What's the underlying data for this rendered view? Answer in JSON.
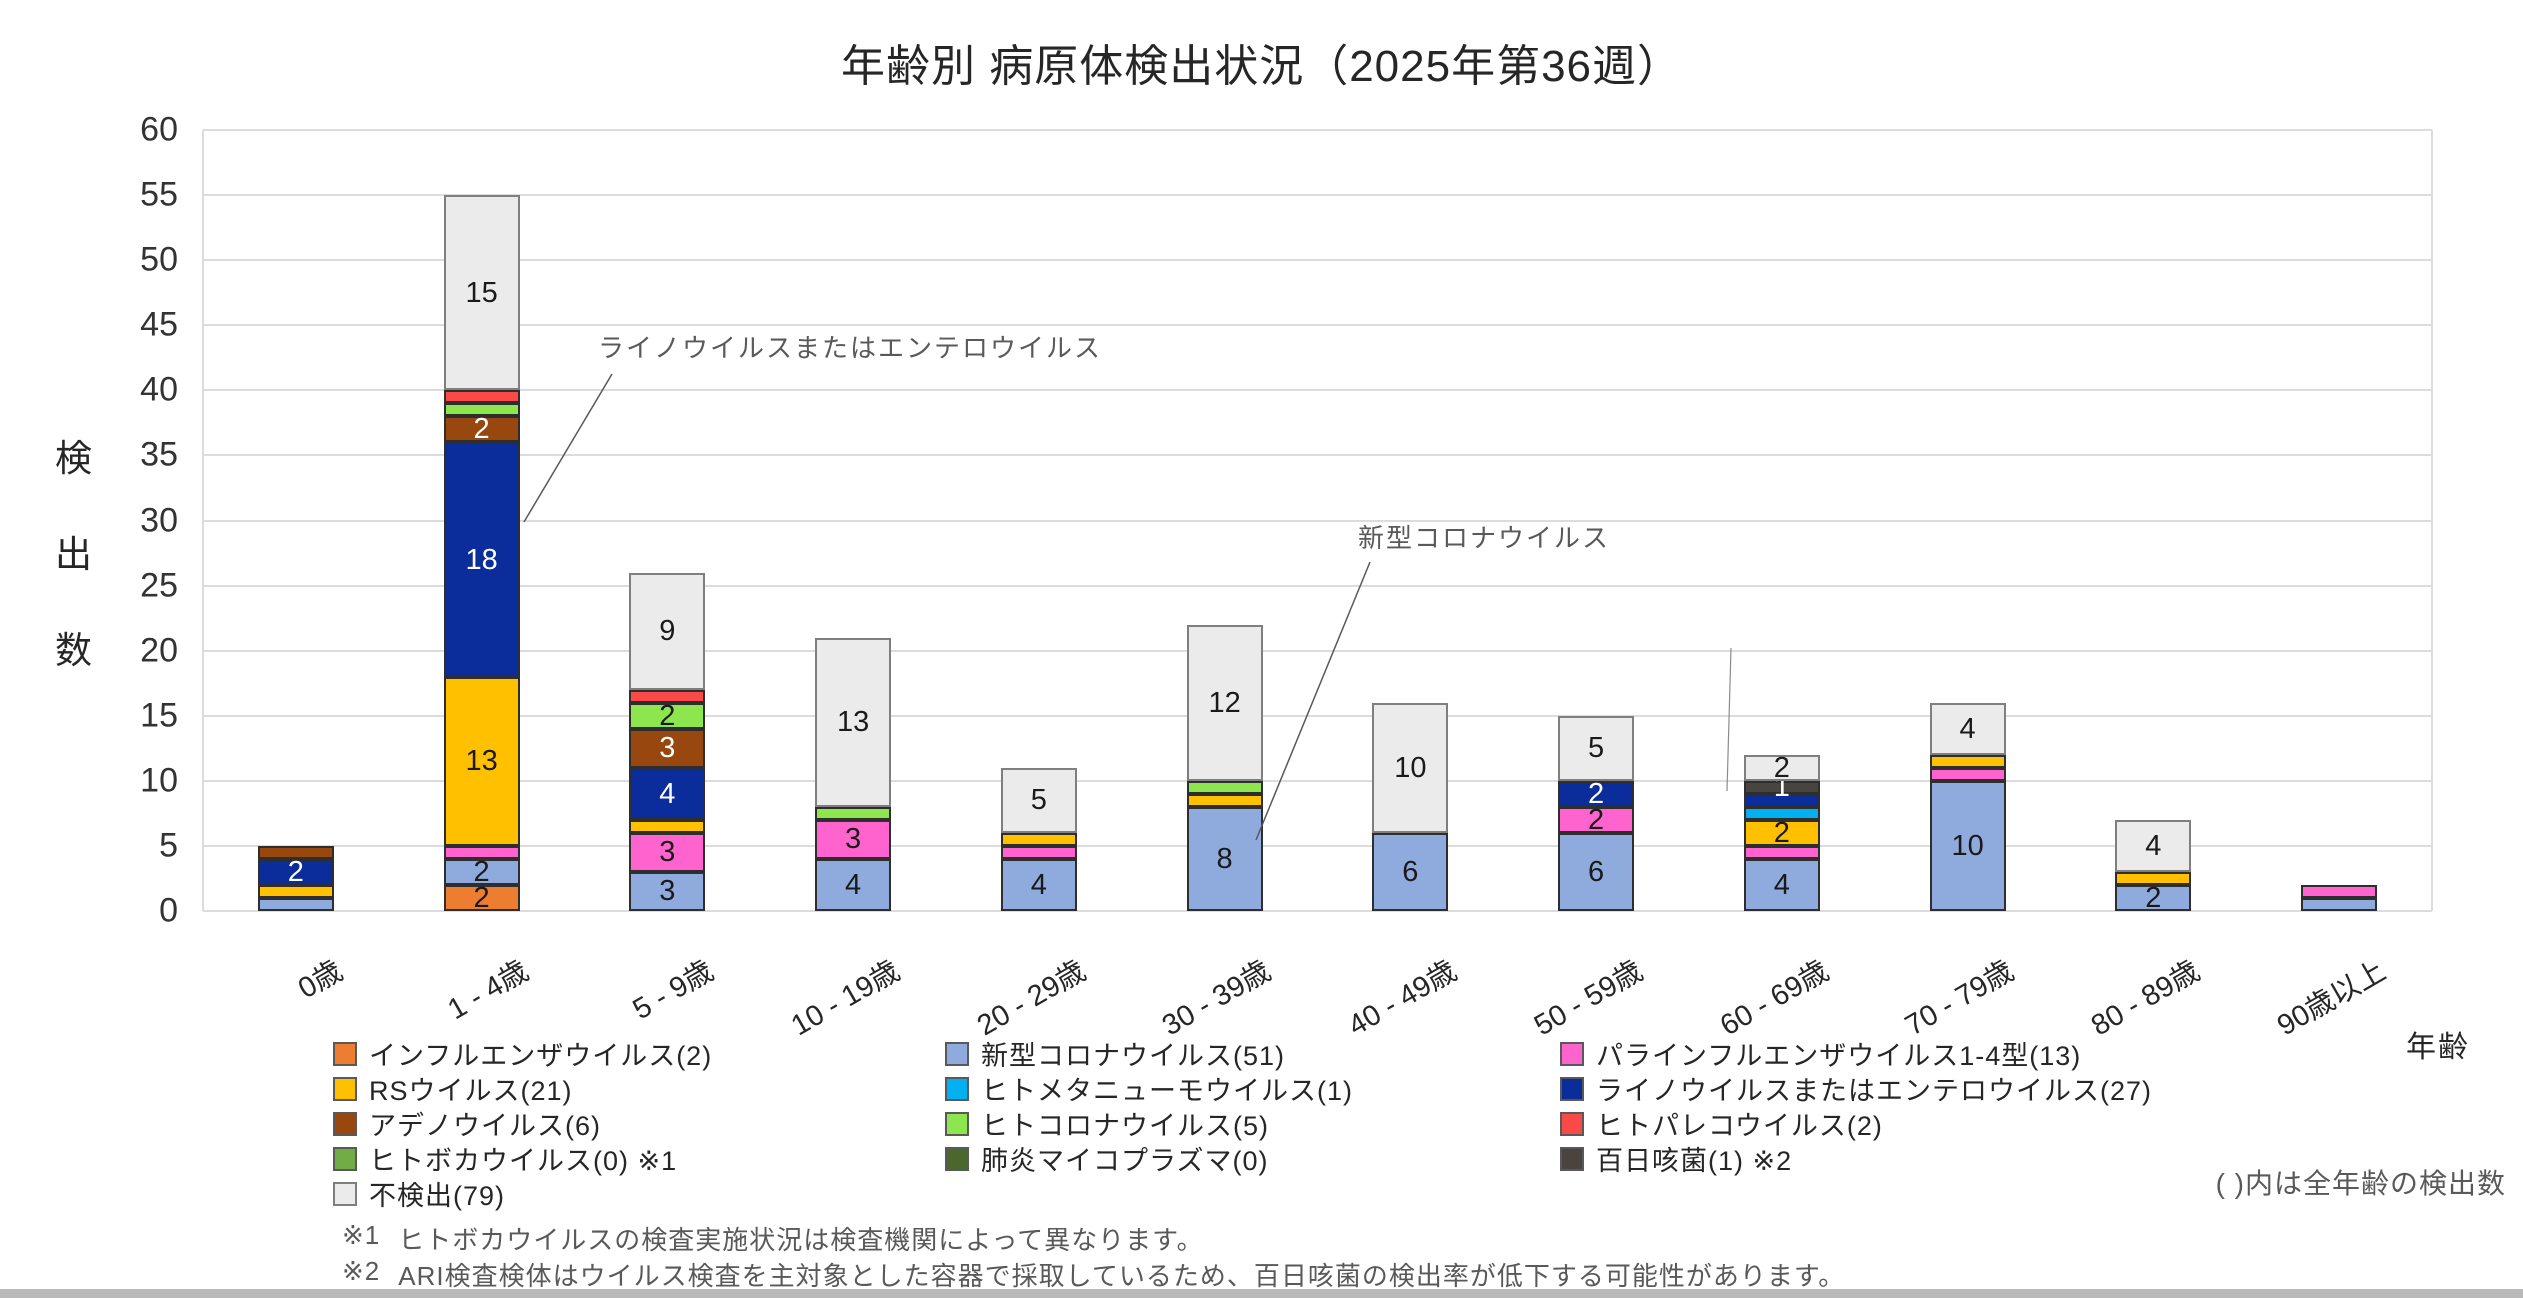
{
  "title": "年齢別 病原体検出状況（2025年第36週）",
  "y_axis": {
    "title": "検出数",
    "title_chars": [
      "検",
      "出",
      "数"
    ],
    "ticks": [
      60,
      55,
      50,
      45,
      40,
      35,
      30,
      25,
      20,
      15,
      10,
      5,
      0
    ],
    "max": 60,
    "step": 5
  },
  "x_axis": {
    "title": "年齢",
    "categories": [
      "0歳",
      "1 - 4歳",
      "5 - 9歳",
      "10 - 19歳",
      "20 - 29歳",
      "30 - 39歳",
      "40 - 49歳",
      "50 - 59歳",
      "60 - 69歳",
      "70 - 79歳",
      "80 - 89歳",
      "90歳以上"
    ]
  },
  "chart_data": {
    "type": "bar",
    "stacked": true,
    "title": "年齢別 病原体検出状況（2025年第36週）",
    "xlabel": "年齢",
    "ylabel": "検出数",
    "ylim": [
      0,
      60
    ],
    "grid": true,
    "legend_position": "bottom",
    "categories": [
      "0歳",
      "1 - 4歳",
      "5 - 9歳",
      "10 - 19歳",
      "20 - 29歳",
      "30 - 39歳",
      "40 - 49歳",
      "50 - 59歳",
      "60 - 69歳",
      "70 - 79歳",
      "80 - 89歳",
      "90歳以上"
    ],
    "series": [
      {
        "key": "influenza",
        "name": "インフルエンザウイルス",
        "total": 2,
        "color": "#ED7D31",
        "values": [
          0,
          2,
          0,
          0,
          0,
          0,
          0,
          0,
          0,
          0,
          0,
          0
        ]
      },
      {
        "key": "covid",
        "name": "新型コロナウイルス",
        "total": 51,
        "color": "#8FAADC",
        "values": [
          1,
          2,
          3,
          4,
          4,
          8,
          6,
          6,
          4,
          10,
          2,
          1
        ]
      },
      {
        "key": "parainfluenza",
        "name": "パラインフルエンザウイルス1-4型",
        "total": 13,
        "color": "#FF63CE",
        "values": [
          0,
          1,
          3,
          3,
          1,
          0,
          0,
          2,
          1,
          1,
          0,
          1
        ]
      },
      {
        "key": "rs",
        "name": "RSウイルス",
        "total": 21,
        "color": "#FFC000",
        "values": [
          1,
          13,
          1,
          0,
          1,
          1,
          0,
          0,
          2,
          1,
          1,
          0
        ]
      },
      {
        "key": "metapneumo",
        "name": "ヒトメタニューモウイルス",
        "total": 1,
        "color": "#00B0F0",
        "values": [
          0,
          0,
          0,
          0,
          0,
          0,
          0,
          0,
          1,
          0,
          0,
          0
        ]
      },
      {
        "key": "rhino",
        "name": "ライノウイルスまたはエンテロウイルス",
        "total": 27,
        "color": "#0B2D9C",
        "label_color": "#FFFFFF",
        "values": [
          2,
          18,
          4,
          0,
          0,
          0,
          0,
          2,
          1,
          0,
          0,
          0
        ]
      },
      {
        "key": "adeno",
        "name": "アデノウイルス",
        "total": 6,
        "color": "#98480F",
        "label_color": "#FFFFFF",
        "values": [
          1,
          2,
          3,
          0,
          0,
          0,
          0,
          0,
          0,
          0,
          0,
          0
        ]
      },
      {
        "key": "hcov",
        "name": "ヒトコロナウイルス",
        "total": 5,
        "color": "#8DE64D",
        "values": [
          0,
          1,
          2,
          1,
          0,
          1,
          0,
          0,
          0,
          0,
          0,
          0
        ]
      },
      {
        "key": "parecho",
        "name": "ヒトパレコウイルス",
        "total": 2,
        "color": "#F94A47",
        "values": [
          0,
          1,
          1,
          0,
          0,
          0,
          0,
          0,
          0,
          0,
          0,
          0
        ]
      },
      {
        "key": "boca",
        "name": "ヒトボカウイルス",
        "total": 0,
        "color": "#70AD47",
        "values": [
          0,
          0,
          0,
          0,
          0,
          0,
          0,
          0,
          0,
          0,
          0,
          0
        ]
      },
      {
        "key": "mycoplasma",
        "name": "肺炎マイコプラズマ",
        "total": 0,
        "color": "#4A682C",
        "values": [
          0,
          0,
          0,
          0,
          0,
          0,
          0,
          0,
          0,
          0,
          0,
          0
        ]
      },
      {
        "key": "pertussis",
        "name": "百日咳菌",
        "total": 1,
        "color": "#494440",
        "label_color": "#FFFFFF",
        "label_min": 1,
        "values": [
          0,
          0,
          0,
          0,
          0,
          0,
          0,
          0,
          1,
          0,
          0,
          0
        ]
      },
      {
        "key": "undetected",
        "name": "不検出",
        "total": 79,
        "color": "#EBEBEB",
        "border": "#7F7F7F",
        "values": [
          0,
          15,
          9,
          13,
          5,
          12,
          10,
          5,
          2,
          4,
          4,
          0
        ]
      }
    ],
    "bar_totals": [
      5,
      55,
      26,
      21,
      11,
      22,
      16,
      15,
      12,
      16,
      7,
      2
    ]
  },
  "legend": {
    "columns": [
      [
        {
          "key": "influenza",
          "label": "インフルエンザウイルス(2)"
        },
        {
          "key": "rs",
          "label": "RSウイルス(21)"
        },
        {
          "key": "adeno",
          "label": "アデノウイルス(6)"
        },
        {
          "key": "boca",
          "label": "ヒトボカウイルス(0) ※1"
        },
        {
          "key": "undetected",
          "label": "不検出(79)"
        }
      ],
      [
        {
          "key": "covid",
          "label": "新型コロナウイルス(51)"
        },
        {
          "key": "metapneumo",
          "label": "ヒトメタニューモウイルス(1)"
        },
        {
          "key": "hcov",
          "label": "ヒトコロナウイルス(5)"
        },
        {
          "key": "mycoplasma",
          "label": "肺炎マイコプラズマ(0)"
        }
      ],
      [
        {
          "key": "parainfluenza",
          "label": "パラインフルエンザウイルス1-4型(13)"
        },
        {
          "key": "rhino",
          "label": "ライノウイルスまたはエンテロウイルス(27)"
        },
        {
          "key": "parecho",
          "label": "ヒトパレコウイルス(2)"
        },
        {
          "key": "pertussis",
          "label": "百日咳菌(1) ※2"
        }
      ]
    ]
  },
  "annotations": [
    {
      "text": "ライノウイルスまたはエンテロウイルス"
    },
    {
      "text": "新型コロナウイルス"
    }
  ],
  "notes": {
    "paren_note": "( )内は全年齢の検出数",
    "footnote1_marker": "※1",
    "footnote1": "ヒトボカウイルスの検査実施状況は検査機関によって異なります。",
    "footnote2_marker": "※2",
    "footnote2": "ARI検査検体はウイルス検査を主対象とした容器で採取しているため、百日咳菌の検出率が低下する可能性があります。"
  }
}
